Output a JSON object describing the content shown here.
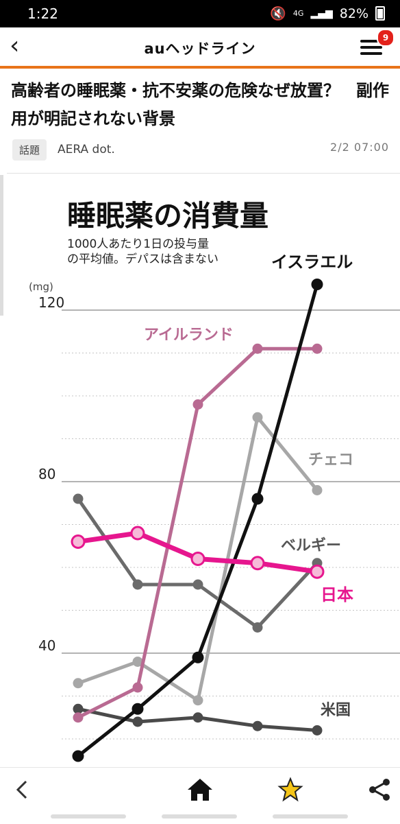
{
  "status": {
    "time": "1:22",
    "network": "4G",
    "battery": "82%"
  },
  "header": {
    "logo": "auヘッドライン",
    "badge": "9"
  },
  "article": {
    "title": "高齢者の睡眠薬・抗不安薬の危険なぜ放置？　副作用が明記されない背景",
    "tag": "話題",
    "source": "AERA dot.",
    "date": "2/2 07:00"
  },
  "colors": {
    "accent": "#e8731a",
    "japan": "#e6168e",
    "ireland": "#b96a92",
    "israel": "#111111",
    "czech": "#a7a7a7",
    "belgium": "#6b6b6b",
    "usa": "#4a4a4a"
  },
  "chart_data": {
    "type": "line",
    "title": "睡眠薬の消費量",
    "subtitle_line1": "1000人あたり1日の投与量",
    "subtitle_line2": "の平均値。デパスは含まない",
    "ylabel": "(mg)",
    "yticks": [
      "120",
      "80",
      "40"
    ],
    "ylim": [
      10,
      142
    ],
    "series": [
      {
        "name": "イスラエル",
        "values": [
          16,
          27,
          39,
          76,
          126
        ]
      },
      {
        "name": "アイルランド",
        "values": [
          25,
          32,
          98,
          111,
          111
        ]
      },
      {
        "name": "チェコ",
        "values": [
          33,
          38,
          29,
          95,
          78
        ]
      },
      {
        "name": "ベルギー",
        "values": [
          76,
          56,
          56,
          46,
          61
        ]
      },
      {
        "name": "日本",
        "values": [
          66,
          68,
          62,
          61,
          59
        ]
      },
      {
        "name": "米国",
        "values": [
          27,
          24,
          25,
          23,
          22
        ]
      }
    ]
  },
  "icons": {
    "back": "chevron-left-icon",
    "menu": "hamburger-icon",
    "home": "home-icon",
    "favorite": "star-icon",
    "share": "share-icon"
  }
}
